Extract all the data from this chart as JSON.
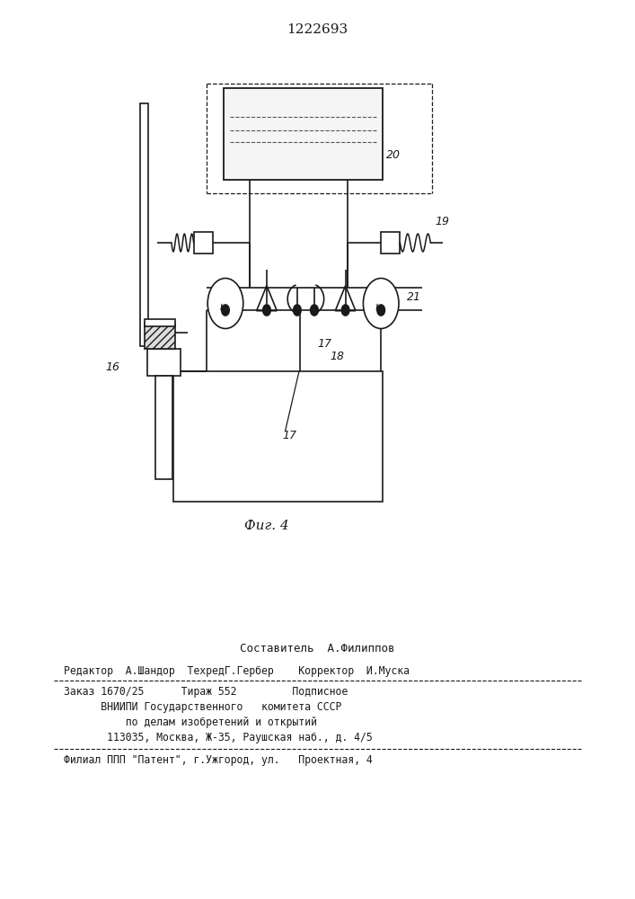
{
  "patent_number": "1222693",
  "fig_label": "Фиг. 4",
  "label_16": "16",
  "label_17a": "17",
  "label_17b": "17",
  "label_18": "18",
  "label_19": "19",
  "label_20": "20",
  "label_21": "21",
  "footer_composer": "Составитель  А.Филиппов",
  "footer_editor": "Редактор  А.Шандор  ТехредГ.Гербер    Корректор  И.Муска",
  "footer_order": "Заказ 1670/25      Тираж 552         Подписное",
  "footer_vniip": "      ВНИИПИ Государственного   комитета СССР",
  "footer_affairs": "          по делам изобретений и открытий",
  "footer_address": "       113035, Москва, Ж-35, Раушская наб., д. 4/5",
  "footer_filial": "Филиал ППП \"Патент\", г.Ужгород, ул.   Проектная, 4",
  "bg_color": "#ffffff",
  "lc": "#1a1a1a"
}
